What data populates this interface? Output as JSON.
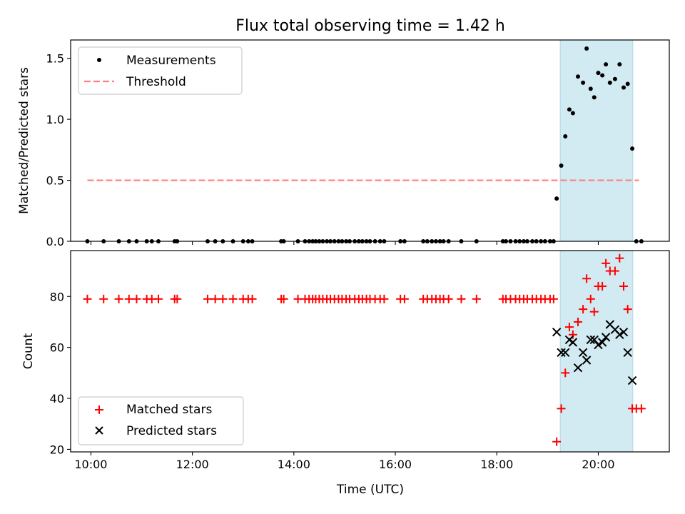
{
  "chart_data": {
    "title": "Flux total observing time = 1.42 h",
    "xlabel": "Time (UTC)",
    "xlim": [
      9.6,
      21.4
    ],
    "xticks": [
      10,
      12,
      14,
      16,
      18,
      20
    ],
    "xtick_labels": [
      "10:00",
      "12:00",
      "14:00",
      "16:00",
      "18:00",
      "20:00"
    ],
    "shaded_region": {
      "x": [
        19.25,
        20.68
      ],
      "color": "#add8e6"
    },
    "panels": [
      {
        "type": "scatter",
        "ylabel": "Matched/Predicted stars",
        "ylim": [
          0,
          1.65
        ],
        "yticks": [
          0.0,
          0.5,
          1.0,
          1.5
        ],
        "ytick_labels": [
          "0.0",
          "0.5",
          "1.0",
          "1.5"
        ],
        "legend_position": "top-left",
        "series": [
          {
            "name": "Measurements",
            "marker": "dot",
            "color": "#000000",
            "points": [
              [
                9.93,
                0
              ],
              [
                10.25,
                0
              ],
              [
                10.55,
                0
              ],
              [
                10.75,
                0
              ],
              [
                10.9,
                0
              ],
              [
                11.1,
                0
              ],
              [
                11.2,
                0
              ],
              [
                11.33,
                0
              ],
              [
                11.65,
                0
              ],
              [
                11.7,
                0
              ],
              [
                12.3,
                0
              ],
              [
                12.45,
                0
              ],
              [
                12.6,
                0
              ],
              [
                12.8,
                0
              ],
              [
                13.0,
                0
              ],
              [
                13.1,
                0
              ],
              [
                13.18,
                0
              ],
              [
                13.75,
                0
              ],
              [
                13.8,
                0
              ],
              [
                14.08,
                0
              ],
              [
                14.22,
                0
              ],
              [
                14.3,
                0
              ],
              [
                14.37,
                0
              ],
              [
                14.43,
                0
              ],
              [
                14.5,
                0
              ],
              [
                14.57,
                0
              ],
              [
                14.65,
                0
              ],
              [
                14.72,
                0
              ],
              [
                14.8,
                0
              ],
              [
                14.88,
                0
              ],
              [
                14.95,
                0
              ],
              [
                15.03,
                0
              ],
              [
                15.1,
                0
              ],
              [
                15.2,
                0
              ],
              [
                15.28,
                0
              ],
              [
                15.35,
                0
              ],
              [
                15.43,
                0
              ],
              [
                15.5,
                0
              ],
              [
                15.6,
                0
              ],
              [
                15.7,
                0
              ],
              [
                15.78,
                0
              ],
              [
                16.1,
                0
              ],
              [
                16.18,
                0
              ],
              [
                16.55,
                0
              ],
              [
                16.63,
                0
              ],
              [
                16.72,
                0
              ],
              [
                16.8,
                0
              ],
              [
                16.88,
                0
              ],
              [
                16.95,
                0
              ],
              [
                17.05,
                0
              ],
              [
                17.3,
                0
              ],
              [
                17.6,
                0
              ],
              [
                18.12,
                0
              ],
              [
                18.18,
                0
              ],
              [
                18.27,
                0
              ],
              [
                18.37,
                0
              ],
              [
                18.45,
                0
              ],
              [
                18.53,
                0
              ],
              [
                18.6,
                0
              ],
              [
                18.7,
                0
              ],
              [
                18.78,
                0
              ],
              [
                18.87,
                0
              ],
              [
                18.95,
                0
              ],
              [
                19.05,
                0
              ],
              [
                19.12,
                0
              ],
              [
                19.18,
                0.35
              ],
              [
                19.27,
                0.62
              ],
              [
                19.35,
                0.86
              ],
              [
                19.43,
                1.08
              ],
              [
                19.5,
                1.05
              ],
              [
                19.6,
                1.35
              ],
              [
                19.7,
                1.3
              ],
              [
                19.77,
                1.58
              ],
              [
                19.85,
                1.25
              ],
              [
                19.92,
                1.18
              ],
              [
                20.0,
                1.38
              ],
              [
                20.08,
                1.36
              ],
              [
                20.15,
                1.45
              ],
              [
                20.23,
                1.3
              ],
              [
                20.33,
                1.33
              ],
              [
                20.42,
                1.45
              ],
              [
                20.5,
                1.26
              ],
              [
                20.58,
                1.29
              ],
              [
                20.67,
                0.76
              ],
              [
                20.75,
                0
              ],
              [
                20.85,
                0
              ]
            ]
          },
          {
            "name": "Threshold",
            "type": "line",
            "dashed": true,
            "color": "#ff7f7f",
            "points": [
              [
                9.93,
                0.5
              ],
              [
                20.8,
                0.5
              ]
            ]
          }
        ]
      },
      {
        "type": "scatter",
        "ylabel": "Count",
        "ylim": [
          19,
          98
        ],
        "yticks": [
          20,
          40,
          60,
          80
        ],
        "ytick_labels": [
          "20",
          "40",
          "60",
          "80"
        ],
        "legend_position": "bottom-left",
        "series": [
          {
            "name": "Matched stars",
            "marker": "plus",
            "color": "#ff0000",
            "points": [
              [
                9.93,
                79
              ],
              [
                10.25,
                79
              ],
              [
                10.55,
                79
              ],
              [
                10.75,
                79
              ],
              [
                10.9,
                79
              ],
              [
                11.1,
                79
              ],
              [
                11.2,
                79
              ],
              [
                11.33,
                79
              ],
              [
                11.65,
                79
              ],
              [
                11.7,
                79
              ],
              [
                12.3,
                79
              ],
              [
                12.45,
                79
              ],
              [
                12.6,
                79
              ],
              [
                12.8,
                79
              ],
              [
                13.0,
                79
              ],
              [
                13.1,
                79
              ],
              [
                13.18,
                79
              ],
              [
                13.75,
                79
              ],
              [
                13.8,
                79
              ],
              [
                14.08,
                79
              ],
              [
                14.22,
                79
              ],
              [
                14.3,
                79
              ],
              [
                14.37,
                79
              ],
              [
                14.43,
                79
              ],
              [
                14.5,
                79
              ],
              [
                14.57,
                79
              ],
              [
                14.65,
                79
              ],
              [
                14.72,
                79
              ],
              [
                14.8,
                79
              ],
              [
                14.88,
                79
              ],
              [
                14.95,
                79
              ],
              [
                15.03,
                79
              ],
              [
                15.1,
                79
              ],
              [
                15.2,
                79
              ],
              [
                15.28,
                79
              ],
              [
                15.35,
                79
              ],
              [
                15.43,
                79
              ],
              [
                15.5,
                79
              ],
              [
                15.6,
                79
              ],
              [
                15.7,
                79
              ],
              [
                15.78,
                79
              ],
              [
                16.1,
                79
              ],
              [
                16.18,
                79
              ],
              [
                16.55,
                79
              ],
              [
                16.63,
                79
              ],
              [
                16.72,
                79
              ],
              [
                16.8,
                79
              ],
              [
                16.88,
                79
              ],
              [
                16.95,
                79
              ],
              [
                17.05,
                79
              ],
              [
                17.3,
                79
              ],
              [
                17.6,
                79
              ],
              [
                18.12,
                79
              ],
              [
                18.18,
                79
              ],
              [
                18.27,
                79
              ],
              [
                18.37,
                79
              ],
              [
                18.45,
                79
              ],
              [
                18.53,
                79
              ],
              [
                18.6,
                79
              ],
              [
                18.7,
                79
              ],
              [
                18.78,
                79
              ],
              [
                18.87,
                79
              ],
              [
                18.95,
                79
              ],
              [
                19.05,
                79
              ],
              [
                19.12,
                79
              ],
              [
                19.18,
                23
              ],
              [
                19.27,
                36
              ],
              [
                19.35,
                50
              ],
              [
                19.43,
                68
              ],
              [
                19.5,
                65
              ],
              [
                19.6,
                70
              ],
              [
                19.7,
                75
              ],
              [
                19.77,
                87
              ],
              [
                19.85,
                79
              ],
              [
                19.92,
                74
              ],
              [
                20.0,
                84
              ],
              [
                20.08,
                84
              ],
              [
                20.15,
                93
              ],
              [
                20.23,
                90
              ],
              [
                20.33,
                90
              ],
              [
                20.42,
                95
              ],
              [
                20.5,
                84
              ],
              [
                20.58,
                75
              ],
              [
                20.67,
                36
              ],
              [
                20.75,
                36
              ],
              [
                20.85,
                36
              ]
            ]
          },
          {
            "name": "Predicted stars",
            "marker": "x",
            "color": "#000000",
            "points": [
              [
                19.18,
                66
              ],
              [
                19.27,
                58
              ],
              [
                19.35,
                58
              ],
              [
                19.43,
                63
              ],
              [
                19.5,
                62
              ],
              [
                19.6,
                52
              ],
              [
                19.7,
                58
              ],
              [
                19.77,
                55
              ],
              [
                19.85,
                63
              ],
              [
                19.92,
                63
              ],
              [
                20.0,
                61
              ],
              [
                20.08,
                62
              ],
              [
                20.15,
                64
              ],
              [
                20.23,
                69
              ],
              [
                20.33,
                67
              ],
              [
                20.42,
                65
              ],
              [
                20.5,
                66
              ],
              [
                20.58,
                58
              ],
              [
                20.67,
                47
              ]
            ]
          }
        ]
      }
    ]
  }
}
